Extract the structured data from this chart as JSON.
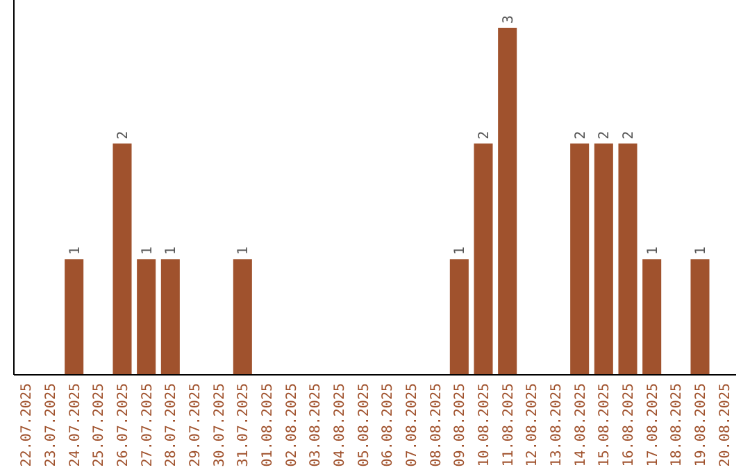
{
  "chart_data": {
    "type": "bar",
    "categories": [
      "22.07.2025",
      "23.07.2025",
      "24.07.2025",
      "25.07.2025",
      "26.07.2025",
      "27.07.2025",
      "28.07.2025",
      "29.07.2025",
      "30.07.2025",
      "31.07.2025",
      "01.08.2025",
      "02.08.2025",
      "03.08.2025",
      "04.08.2025",
      "05.08.2025",
      "06.08.2025",
      "07.08.2025",
      "08.08.2025",
      "09.08.2025",
      "10.08.2025",
      "11.08.2025",
      "12.08.2025",
      "13.08.2025",
      "14.08.2025",
      "15.08.2025",
      "16.08.2025",
      "17.08.2025",
      "18.08.2025",
      "19.08.2025",
      "20.08.2025"
    ],
    "values": [
      0,
      0,
      1,
      0,
      2,
      1,
      1,
      0,
      0,
      1,
      0,
      0,
      0,
      0,
      0,
      0,
      0,
      0,
      1,
      2,
      3,
      0,
      0,
      2,
      2,
      2,
      1,
      0,
      1,
      0
    ],
    "value_labels": [
      null,
      null,
      "1",
      null,
      "2",
      "1",
      "1",
      null,
      null,
      "1",
      null,
      null,
      null,
      null,
      null,
      null,
      null,
      null,
      "1",
      "2",
      "3",
      null,
      null,
      "2",
      "2",
      "2",
      "1",
      null,
      "1",
      null
    ],
    "color": "#a0522d",
    "tick_labels": "x"
  }
}
